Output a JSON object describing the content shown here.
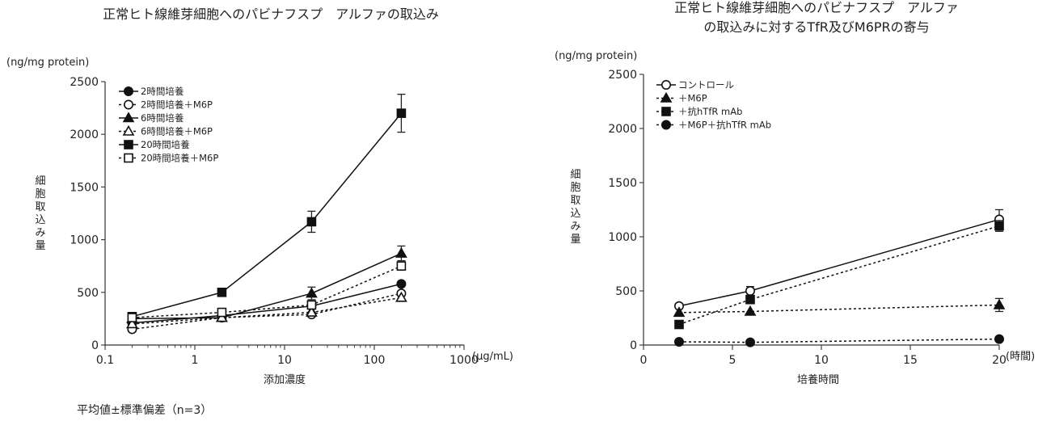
{
  "footnote": "平均値±標準偏差（n=3）",
  "chart_data": [
    {
      "type": "line",
      "title": "正常ヒト線維芽細胞へのパビナフスプ　アルファの取込み",
      "y_unit": "(ng/mg protein)",
      "ylabel": "細胞取込み量",
      "xlabel": "添加濃度",
      "x_unit": "(μg/mL)",
      "x_scale": "log",
      "xlim": [
        0.1,
        1000
      ],
      "ylim": [
        0,
        2500
      ],
      "x_ticks": [
        0.1,
        1,
        10,
        100,
        1000
      ],
      "x_tick_labels": [
        "0.1",
        "1",
        "10",
        "100",
        "1000"
      ],
      "y_ticks": [
        0,
        500,
        1000,
        1500,
        2000,
        2500
      ],
      "y_tick_labels": [
        "0",
        "500",
        "1000",
        "1500",
        "2000",
        "2500"
      ],
      "legend_position": "top-left",
      "grid": false,
      "x": [
        0.2,
        2,
        20,
        200
      ],
      "series": [
        {
          "name": "2時間培養",
          "marker": "circle-filled",
          "dash": "solid",
          "values": [
            210,
            280,
            370,
            580
          ],
          "errors": [
            0,
            0,
            0,
            0
          ]
        },
        {
          "name": "2時間培養＋M6P",
          "marker": "circle-open",
          "dash": "dotted",
          "values": [
            150,
            260,
            290,
            490
          ],
          "errors": [
            0,
            0,
            0,
            0
          ]
        },
        {
          "name": "6時間培養",
          "marker": "triangle-filled",
          "dash": "solid",
          "values": [
            250,
            260,
            490,
            870
          ],
          "errors": [
            0,
            0,
            60,
            70
          ]
        },
        {
          "name": "6時間培養＋M6P",
          "marker": "triangle-open",
          "dash": "dotted",
          "values": [
            200,
            260,
            310,
            450
          ],
          "errors": [
            0,
            0,
            0,
            0
          ]
        },
        {
          "name": "20時間培養",
          "marker": "square-filled",
          "dash": "solid",
          "values": [
            270,
            500,
            1170,
            2200
          ],
          "errors": [
            0,
            0,
            100,
            180
          ]
        },
        {
          "name": "20時間培養＋M6P",
          "marker": "square-open",
          "dash": "dotted",
          "values": [
            260,
            310,
            380,
            750
          ],
          "errors": [
            0,
            0,
            0,
            0
          ]
        }
      ]
    },
    {
      "type": "line",
      "title": "正常ヒト線維芽細胞へのパビナフスプ　アルファ",
      "title_line2": "の取込みに対するTfR及びM6PRの寄与",
      "y_unit": "(ng/mg protein)",
      "ylabel": "細胞取込み量",
      "xlabel": "培養時間",
      "x_unit": "(時間)",
      "x_scale": "linear",
      "xlim": [
        0,
        20
      ],
      "ylim": [
        0,
        2500
      ],
      "x_ticks": [
        0,
        5,
        10,
        15,
        20
      ],
      "x_tick_labels": [
        "0",
        "5",
        "10",
        "15",
        "20"
      ],
      "y_ticks": [
        0,
        500,
        1000,
        1500,
        2000,
        2500
      ],
      "y_tick_labels": [
        "0",
        "500",
        "1000",
        "1500",
        "2000",
        "2500"
      ],
      "legend_position": "top-left",
      "grid": false,
      "x": [
        2,
        6,
        20
      ],
      "series": [
        {
          "name": "コントロール",
          "marker": "circle-open",
          "dash": "solid",
          "values": [
            360,
            500,
            1160
          ],
          "errors": [
            0,
            40,
            90
          ]
        },
        {
          "name": "＋M6P",
          "marker": "triangle-filled",
          "dash": "dotted",
          "values": [
            300,
            310,
            370
          ],
          "errors": [
            0,
            0,
            60
          ]
        },
        {
          "name": "＋抗hTfR mAb",
          "marker": "square-filled",
          "dash": "dotted",
          "values": [
            190,
            420,
            1100
          ],
          "errors": [
            0,
            0,
            50
          ]
        },
        {
          "name": "＋M6P＋抗hTfR mAb",
          "marker": "circle-filled",
          "dash": "dotted",
          "values": [
            30,
            25,
            55
          ],
          "errors": [
            0,
            0,
            0
          ]
        }
      ]
    }
  ]
}
